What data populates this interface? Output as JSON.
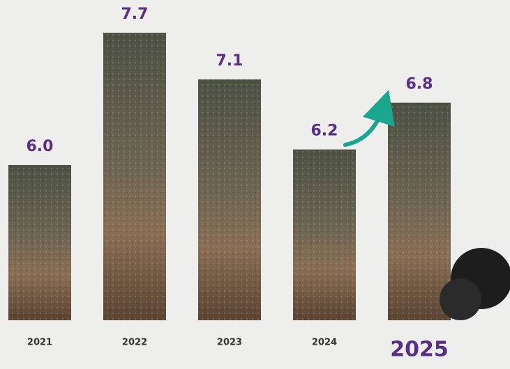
{
  "chart_data": {
    "type": "bar",
    "categories": [
      "2021",
      "2022",
      "2023",
      "2024",
      "2025"
    ],
    "values": [
      6.0,
      7.7,
      7.1,
      6.2,
      6.8
    ],
    "value_labels": [
      "6.0",
      "7.7",
      "7.1",
      "6.2",
      "6.8"
    ]
  }
}
